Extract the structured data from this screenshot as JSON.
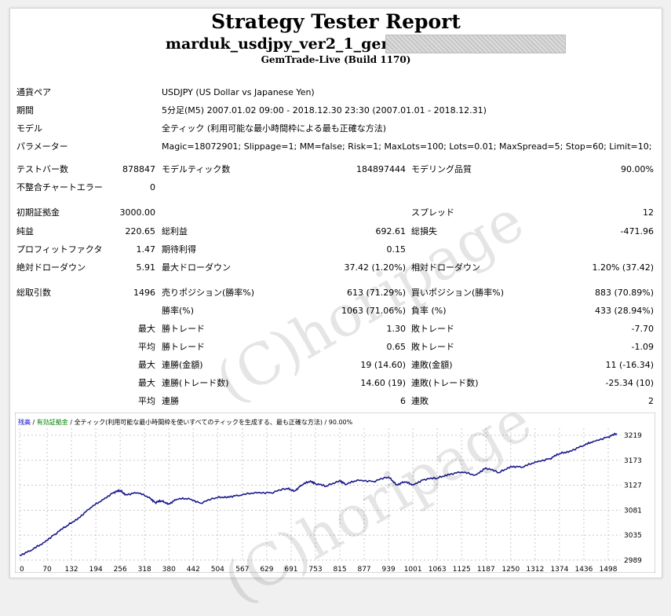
{
  "report": {
    "title": "Strategy Tester Report",
    "subtitle": "marduk_usdjpy_ver2_1_gem_",
    "build": "GemTrade-Live (Build 1170)"
  },
  "info": {
    "symbol_label": "通貨ペア",
    "symbol_value": "USDJPY (US Dollar vs Japanese Yen)",
    "period_label": "期間",
    "period_value": "5分足(M5) 2007.01.02 09:00 - 2018.12.30 23:30 (2007.01.01 - 2018.12.31)",
    "model_label": "モデル",
    "model_value": "全ティック (利用可能な最小時間枠による最も正確な方法)",
    "params_label": "パラメーター",
    "params_value": "Magic=18072901; Slippage=1; MM=false; Risk=1; MaxLots=100; Lots=0.01; MaxSpread=5; Stop=60; Limit=10;"
  },
  "stats": {
    "bars_label": "テストバー数",
    "bars_value": "878847",
    "ticks_label": "モデルティック数",
    "ticks_value": "184897444",
    "quality_label": "モデリング品質",
    "quality_value": "90.00%",
    "mismatch_label": "不整合チャートエラー",
    "mismatch_value": "0",
    "deposit_label": "初期証拠金",
    "deposit_value": "3000.00",
    "spread_label": "スプレッド",
    "spread_value": "12",
    "net_label": "純益",
    "net_value": "220.65",
    "gross_profit_label": "総利益",
    "gross_profit_value": "692.61",
    "gross_loss_label": "総損失",
    "gross_loss_value": "-471.96",
    "pf_label": "プロフィットファクタ",
    "pf_value": "1.47",
    "expected_label": "期待利得",
    "expected_value": "0.15",
    "abs_dd_label": "絶対ドローダウン",
    "abs_dd_value": "5.91",
    "max_dd_label": "最大ドローダウン",
    "max_dd_value": "37.42 (1.20%)",
    "rel_dd_label": "相対ドローダウン",
    "rel_dd_value": "1.20% (37.42)",
    "trades_label": "総取引数",
    "trades_value": "1496",
    "short_label": "売りポジション(勝率%)",
    "short_value": "613 (71.29%)",
    "long_label": "買いポジション(勝率%)",
    "long_value": "883 (70.89%)",
    "winrate_label": "勝率(%)",
    "winrate_value": "1063 (71.06%)",
    "lossrate_label": "負率 (%)",
    "lossrate_value": "433 (28.94%)",
    "max_word": "最大",
    "avg_word": "平均",
    "largest_win_label": "勝トレード",
    "largest_win_value": "1.30",
    "largest_loss_label": "敗トレード",
    "largest_loss_value": "-7.70",
    "avg_win_label": "勝トレード",
    "avg_win_value": "0.65",
    "avg_loss_label": "敗トレード",
    "avg_loss_value": "-1.09",
    "max_consec_wins_label": "連勝(金額)",
    "max_consec_wins_value": "19 (14.60)",
    "max_consec_losses_label": "連敗(金額)",
    "max_consec_losses_value": "11 (-16.34)",
    "max_consec_profit_label": "連勝(トレード数)",
    "max_consec_profit_value": "14.60 (19)",
    "max_consec_loss_label": "連敗(トレード数)",
    "max_consec_loss_value": "-25.34 (10)",
    "avg_consec_wins_label": "連勝",
    "avg_consec_wins_value": "6",
    "avg_consec_losses_label": "連敗",
    "avg_consec_losses_value": "2"
  },
  "watermark": "(C)horipage",
  "chart_data": {
    "type": "line",
    "legend": {
      "balance": "残高",
      "sep1": " / ",
      "equity": "有効証拠金",
      "sep2": " / ",
      "model": "全ティック(利用可能な最小時間枠を使いすべてのティックを生成する、最も正確な方法) / 90.00%"
    },
    "colors": {
      "line": "#1a1a8c",
      "balance_text": "#0000cc",
      "equity_text": "#008000",
      "grid": "#c8c8c8"
    },
    "x_ticks": [
      0,
      70,
      132,
      194,
      256,
      318,
      380,
      442,
      504,
      567,
      629,
      691,
      753,
      815,
      877,
      939,
      1001,
      1063,
      1125,
      1187,
      1250,
      1312,
      1374,
      1436,
      1498
    ],
    "y_ticks": [
      2989,
      3035,
      3081,
      3127,
      3173,
      3219
    ],
    "xlim": [
      0,
      1530
    ],
    "ylim": [
      2986,
      3232
    ],
    "series": [
      {
        "x": [
          0,
          30,
          60,
          90,
          120,
          150,
          180,
          210,
          240,
          256,
          270,
          300,
          330,
          345,
          360,
          380,
          400,
          430,
          460,
          500,
          530,
          560,
          600,
          640,
          680,
          700,
          720,
          740,
          753,
          780,
          815,
          830,
          860,
          900,
          939,
          960,
          980,
          1001,
          1030,
          1063,
          1090,
          1125,
          1160,
          1187,
          1220,
          1250,
          1280,
          1312,
          1350,
          1374,
          1400,
          1436,
          1460,
          1498,
          1520
        ],
        "y": [
          2998,
          3007,
          3021,
          3037,
          3052,
          3067,
          3085,
          3100,
          3114,
          3117,
          3110,
          3113,
          3105,
          3095,
          3098,
          3093,
          3101,
          3103,
          3094,
          3104,
          3106,
          3108,
          3114,
          3113,
          3121,
          3117,
          3128,
          3135,
          3130,
          3125,
          3136,
          3128,
          3137,
          3134,
          3142,
          3128,
          3133,
          3128,
          3138,
          3140,
          3147,
          3151,
          3146,
          3159,
          3150,
          3162,
          3160,
          3170,
          3176,
          3185,
          3190,
          3200,
          3208,
          3216,
          3222
        ]
      }
    ]
  }
}
